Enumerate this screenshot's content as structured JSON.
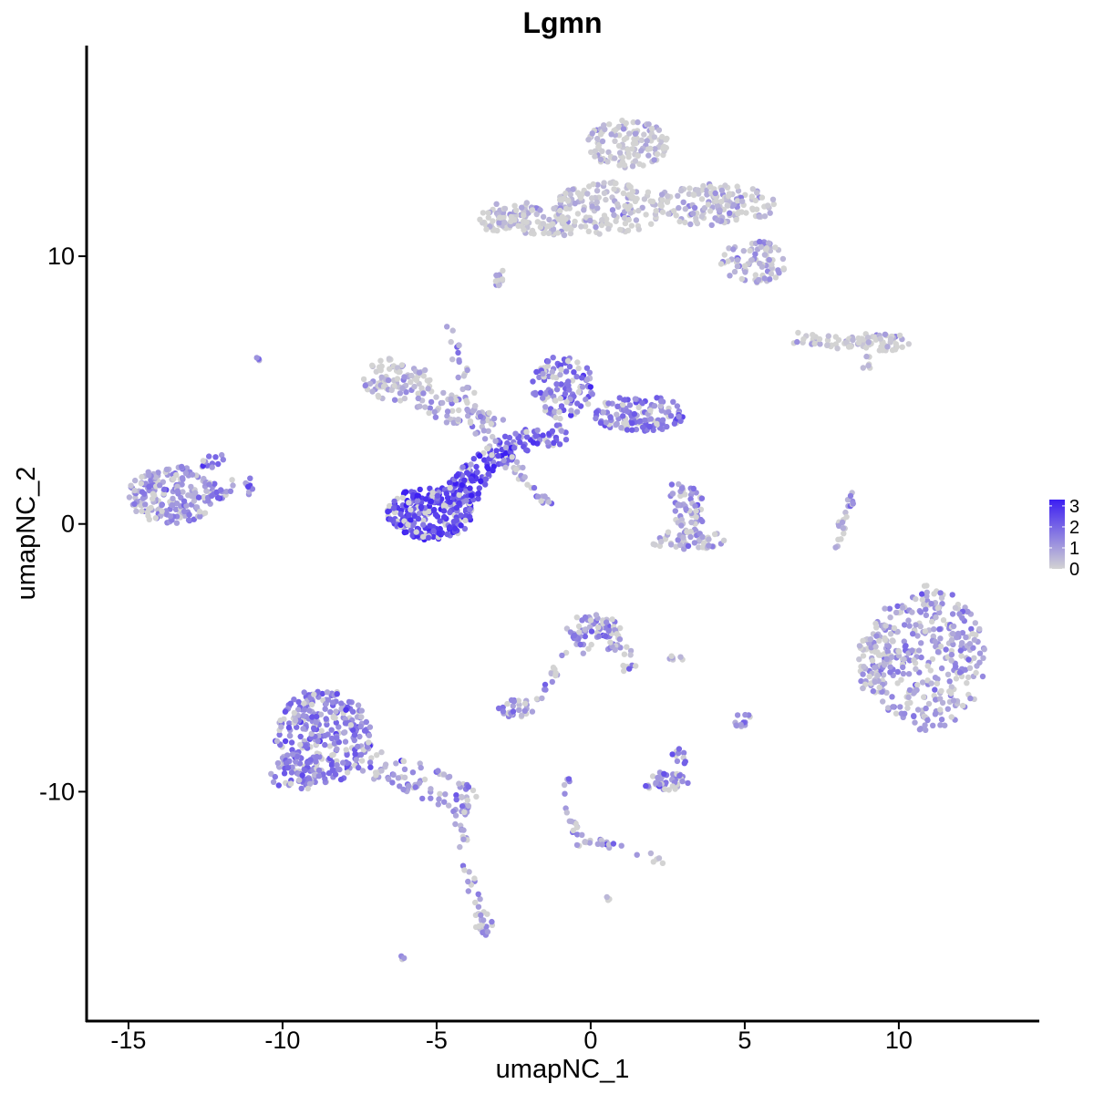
{
  "chart_data": {
    "type": "scatter",
    "title": "Lgmn",
    "xlabel": "umapNC_1",
    "ylabel": "umapNC_2",
    "xlim": [
      -16.3,
      14.5
    ],
    "ylim": [
      -18.5,
      17.8
    ],
    "x_ticks": [
      -15,
      -10,
      -5,
      0,
      5,
      10
    ],
    "x_tick_labels": [
      "-15",
      "-10",
      "-5",
      "0",
      "5",
      "10"
    ],
    "y_ticks": [
      -10,
      0,
      10
    ],
    "y_tick_labels": [
      "-10",
      "0",
      "10"
    ],
    "grid": false,
    "colorbar": {
      "position": "right",
      "low_color": "#d3d3d3",
      "high_color": "#3c1ff2",
      "min": 0,
      "max": 3.3,
      "ticks": [
        0,
        1,
        2,
        3
      ],
      "tick_labels": [
        "0",
        "1",
        "2",
        "3"
      ]
    },
    "clusters": [
      {
        "shape": "ellipse",
        "cx": 0.6,
        "cy": 11.8,
        "rx": 1.8,
        "ry": 1.0,
        "n": 160,
        "mean": 0.25
      },
      {
        "shape": "ellipse",
        "cx": 1.2,
        "cy": 14.2,
        "rx": 1.3,
        "ry": 0.9,
        "n": 130,
        "mean": 0.25
      },
      {
        "shape": "ellipse",
        "cx": 4.0,
        "cy": 11.9,
        "rx": 2.0,
        "ry": 0.8,
        "n": 150,
        "mean": 0.4
      },
      {
        "shape": "ellipse",
        "cx": 5.3,
        "cy": 9.8,
        "rx": 1.1,
        "ry": 0.8,
        "n": 80,
        "mean": 0.5
      },
      {
        "shape": "line",
        "x1": -3.6,
        "y1": 11.3,
        "x2": -0.5,
        "y2": 11.1,
        "width": 0.35,
        "n": 90,
        "mean": 0.2
      },
      {
        "shape": "ellipse",
        "cx": -2.5,
        "cy": 11.6,
        "rx": 0.9,
        "ry": 0.5,
        "n": 45,
        "mean": 0.2
      },
      {
        "shape": "ellipse",
        "cx": -2.9,
        "cy": 8.9,
        "rx": 0.2,
        "ry": 0.4,
        "n": 8,
        "mean": 1.2
      },
      {
        "shape": "ellipse",
        "cx": 9.3,
        "cy": 6.8,
        "rx": 1.1,
        "ry": 0.35,
        "n": 60,
        "mean": 0.1
      },
      {
        "shape": "line",
        "x1": 6.6,
        "y1": 7.0,
        "x2": 8.5,
        "y2": 6.7,
        "width": 0.25,
        "n": 30,
        "mean": 0.1
      },
      {
        "shape": "ellipse",
        "cx": 8.9,
        "cy": 6.0,
        "rx": 0.3,
        "ry": 0.4,
        "n": 6,
        "mean": 0.3
      },
      {
        "shape": "ellipse",
        "cx": -13.6,
        "cy": 1.1,
        "rx": 1.4,
        "ry": 1.1,
        "n": 190,
        "mean": 1.1
      },
      {
        "shape": "line",
        "x1": -12.5,
        "y1": 1.2,
        "x2": -10.9,
        "y2": 1.5,
        "width": 0.35,
        "n": 30,
        "mean": 1.5
      },
      {
        "shape": "line",
        "x1": -12.6,
        "y1": 2.1,
        "x2": -11.8,
        "y2": 2.7,
        "width": 0.25,
        "n": 12,
        "mean": 1.0
      },
      {
        "shape": "ellipse",
        "cx": -10.8,
        "cy": 6.1,
        "rx": 0.12,
        "ry": 0.12,
        "n": 3,
        "mean": 1.5
      },
      {
        "shape": "ellipse",
        "cx": -5.2,
        "cy": 0.4,
        "rx": 1.4,
        "ry": 1.0,
        "n": 260,
        "mean": 2.5
      },
      {
        "shape": "ellipse",
        "cx": -4.0,
        "cy": 1.4,
        "rx": 0.6,
        "ry": 0.6,
        "n": 50,
        "mean": 2.4
      },
      {
        "shape": "line",
        "x1": -4.2,
        "y1": 1.6,
        "x2": -2.6,
        "y2": 2.9,
        "width": 0.45,
        "n": 70,
        "mean": 2.5
      },
      {
        "shape": "line",
        "x1": -2.8,
        "y1": 3.0,
        "x2": -0.8,
        "y2": 3.4,
        "width": 0.4,
        "n": 50,
        "mean": 2.0
      },
      {
        "shape": "ellipse",
        "cx": -0.9,
        "cy": 5.1,
        "rx": 1.0,
        "ry": 1.2,
        "n": 120,
        "mean": 1.6
      },
      {
        "shape": "ellipse",
        "cx": 1.6,
        "cy": 4.1,
        "rx": 1.5,
        "ry": 0.7,
        "n": 130,
        "mean": 1.6
      },
      {
        "shape": "ellipse",
        "cx": -6.3,
        "cy": 5.4,
        "rx": 1.1,
        "ry": 0.8,
        "n": 90,
        "mean": 0.5
      },
      {
        "shape": "line",
        "x1": -5.6,
        "y1": 4.8,
        "x2": -3.0,
        "y2": 3.5,
        "width": 0.5,
        "n": 70,
        "mean": 0.7
      },
      {
        "shape": "line",
        "x1": -4.7,
        "y1": 7.4,
        "x2": -3.5,
        "y2": 3.5,
        "width": 0.2,
        "n": 28,
        "mean": 0.8
      },
      {
        "shape": "line",
        "x1": -2.3,
        "y1": 1.8,
        "x2": -1.3,
        "y2": 0.7,
        "width": 0.15,
        "n": 16,
        "mean": 1.0
      },
      {
        "shape": "line",
        "x1": -3.2,
        "y1": 3.0,
        "x2": -2.1,
        "y2": 1.7,
        "width": 0.25,
        "n": 14,
        "mean": 0.6
      },
      {
        "shape": "ellipse",
        "cx": 3.2,
        "cy": 0.5,
        "rx": 0.5,
        "ry": 0.9,
        "n": 50,
        "mean": 0.9
      },
      {
        "shape": "ellipse",
        "cx": 3.2,
        "cy": -0.6,
        "rx": 1.3,
        "ry": 0.35,
        "n": 50,
        "mean": 0.6
      },
      {
        "shape": "ellipse",
        "cx": 2.7,
        "cy": 1.3,
        "rx": 0.3,
        "ry": 0.3,
        "n": 8,
        "mean": 0.7
      },
      {
        "shape": "line",
        "x1": 8.5,
        "y1": 1.2,
        "x2": 7.9,
        "y2": -0.9,
        "width": 0.15,
        "n": 22,
        "mean": 0.6
      },
      {
        "shape": "ellipse",
        "cx": 10.9,
        "cy": -5.0,
        "rx": 1.9,
        "ry": 2.7,
        "n": 340,
        "mean": 1.0
      },
      {
        "shape": "ellipse",
        "cx": 9.2,
        "cy": -5.2,
        "rx": 0.6,
        "ry": 1.2,
        "n": 60,
        "mean": 0.4
      },
      {
        "shape": "ellipse",
        "cx": 0.1,
        "cy": -4.1,
        "rx": 0.9,
        "ry": 0.8,
        "n": 80,
        "mean": 1.2
      },
      {
        "shape": "line",
        "x1": 0.8,
        "y1": -4.2,
        "x2": 1.4,
        "y2": -5.6,
        "width": 0.3,
        "n": 18,
        "mean": 1.0
      },
      {
        "shape": "line",
        "x1": -0.8,
        "y1": -4.6,
        "x2": -1.7,
        "y2": -6.8,
        "width": 0.15,
        "n": 16,
        "mean": 1.0
      },
      {
        "shape": "ellipse",
        "cx": -2.4,
        "cy": -6.9,
        "rx": 0.6,
        "ry": 0.35,
        "n": 30,
        "mean": 1.3
      },
      {
        "shape": "ellipse",
        "cx": 2.4,
        "cy": -9.6,
        "rx": 0.8,
        "ry": 0.35,
        "n": 45,
        "mean": 1.2
      },
      {
        "shape": "ellipse",
        "cx": 2.9,
        "cy": -8.7,
        "rx": 0.3,
        "ry": 0.3,
        "n": 10,
        "mean": 1.4
      },
      {
        "shape": "line",
        "x1": -0.9,
        "y1": -9.2,
        "x2": -0.4,
        "y2": -12.2,
        "width": 0.15,
        "n": 18,
        "mean": 1.0
      },
      {
        "shape": "line",
        "x1": -0.4,
        "y1": -11.7,
        "x2": 2.4,
        "y2": -12.6,
        "width": 0.15,
        "n": 22,
        "mean": 0.9
      },
      {
        "shape": "ellipse",
        "cx": 4.9,
        "cy": -7.3,
        "rx": 0.3,
        "ry": 0.3,
        "n": 12,
        "mean": 1.0
      },
      {
        "shape": "ellipse",
        "cx": 2.8,
        "cy": -5.0,
        "rx": 0.3,
        "ry": 0.1,
        "n": 6,
        "mean": 0.5
      },
      {
        "shape": "ellipse",
        "cx": -8.7,
        "cy": -7.9,
        "rx": 1.6,
        "ry": 1.8,
        "n": 300,
        "mean": 1.5
      },
      {
        "shape": "ellipse",
        "cx": -9.6,
        "cy": -9.3,
        "rx": 0.8,
        "ry": 0.7,
        "n": 60,
        "mean": 1.5
      },
      {
        "shape": "line",
        "x1": -7.2,
        "y1": -8.8,
        "x2": -3.8,
        "y2": -10.4,
        "width": 0.6,
        "n": 90,
        "mean": 1.0
      },
      {
        "shape": "line",
        "x1": -4.3,
        "y1": -10.6,
        "x2": -3.6,
        "y2": -15.2,
        "width": 0.2,
        "n": 30,
        "mean": 1.0
      },
      {
        "shape": "ellipse",
        "cx": -3.5,
        "cy": -14.9,
        "rx": 0.35,
        "ry": 0.5,
        "n": 16,
        "mean": 1.3
      },
      {
        "shape": "ellipse",
        "cx": -6.1,
        "cy": -16.2,
        "rx": 0.1,
        "ry": 0.1,
        "n": 3,
        "mean": 1.2
      },
      {
        "shape": "ellipse",
        "cx": -2.9,
        "cy": 9.3,
        "rx": 0.2,
        "ry": 0.2,
        "n": 4,
        "mean": 0.6
      },
      {
        "shape": "ellipse",
        "cx": 0.6,
        "cy": -14.0,
        "rx": 0.1,
        "ry": 0.1,
        "n": 3,
        "mean": 1.2
      }
    ]
  }
}
